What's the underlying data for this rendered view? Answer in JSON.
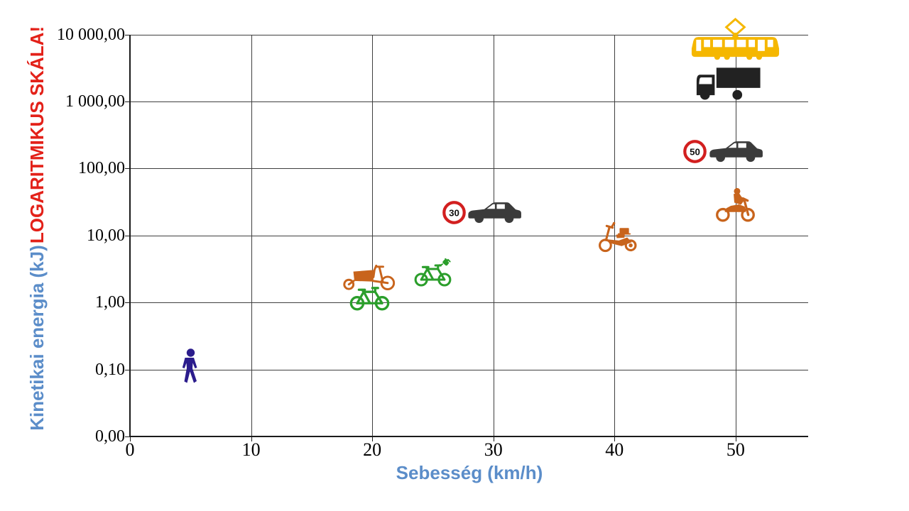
{
  "chart_data": {
    "type": "scatter",
    "scale": "log-y",
    "xlabel": "Sebesség (km/h)",
    "ylabel": "Kinetikai energia (kJ)",
    "ylabel_note": "LOGARITMIKUS SKÁLA!",
    "x_tick_labels": [
      "0",
      "10",
      "20",
      "30",
      "40",
      "50"
    ],
    "y_tick_labels": [
      "0,00",
      "0,10",
      "1,00",
      "10,00",
      "100,00",
      "1 000,00",
      "10 000,00"
    ],
    "xlim": [
      0,
      56
    ],
    "grid": true,
    "legend": "none",
    "points": [
      {
        "name": "pedestrian",
        "icon": "pedestrian-icon",
        "speed_kmh": 5,
        "energy_kj": 0.11,
        "color": "#2B1C8C"
      },
      {
        "name": "bicycle",
        "icon": "bicycle-icon",
        "speed_kmh": 19.8,
        "energy_kj": 1.2,
        "color": "#2B9E2B"
      },
      {
        "name": "cargo-bike",
        "icon": "cargo-bike-icon",
        "speed_kmh": 19.8,
        "energy_kj": 2.5,
        "color": "#C8641C"
      },
      {
        "name": "e-bike",
        "icon": "e-bike-icon",
        "speed_kmh": 25,
        "energy_kj": 2.8,
        "color": "#2B9E2B"
      },
      {
        "name": "moped",
        "icon": "moped-icon",
        "speed_kmh": 40.3,
        "energy_kj": 9.5,
        "color": "#C8641C"
      },
      {
        "name": "car-30",
        "icon": "car-icon",
        "sign": "30",
        "speed_kmh": 30.1,
        "energy_kj": 22,
        "color": "#3B3B3B"
      },
      {
        "name": "motorcycle",
        "icon": "motorcycle-icon",
        "speed_kmh": 50,
        "energy_kj": 29,
        "color": "#C8641C"
      },
      {
        "name": "car-50",
        "icon": "car-icon",
        "sign": "50",
        "speed_kmh": 50,
        "energy_kj": 180,
        "color": "#3B3B3B"
      },
      {
        "name": "truck",
        "icon": "truck-icon",
        "speed_kmh": 49.4,
        "energy_kj": 1900,
        "color": "#222222"
      },
      {
        "name": "tram",
        "icon": "tram-icon",
        "speed_kmh": 50,
        "energy_kj": 6300,
        "color": "#F5B700"
      }
    ],
    "colors": {
      "axis_title": "#5B8DC9",
      "note": "#E32119",
      "grid": "#3F3F3F",
      "axis_line": "#1A1A1A",
      "tick_text": "#000000",
      "sign_ring": "#D21F1F",
      "sign_text": "#0F0F0F",
      "background": "#FFFFFF"
    }
  }
}
